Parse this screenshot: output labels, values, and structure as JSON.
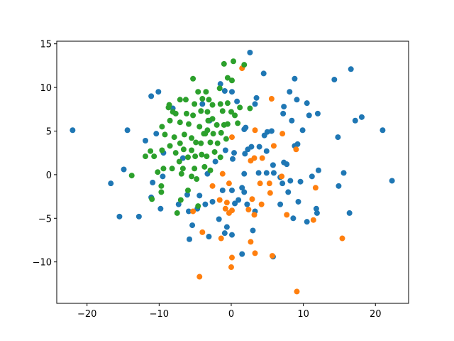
{
  "chart_data": {
    "type": "scatter",
    "xlim": [
      -24.2,
      24.6
    ],
    "ylim": [
      -14.75,
      15.3
    ],
    "xticks": [
      {
        "value": -20,
        "label": "−20"
      },
      {
        "value": -10,
        "label": "−10"
      },
      0,
      10,
      20
    ],
    "yticks": [
      {
        "value": -10,
        "label": "−10"
      },
      {
        "value": -5,
        "label": "−5"
      },
      0,
      5,
      10,
      15
    ],
    "series": [
      {
        "color": "#1f77b4",
        "x": [
          -22.0,
          -14.4,
          -14.9,
          -16.7,
          -15.5,
          -12.8,
          -11.1,
          -10.1,
          -10.4,
          -11.9,
          -11.1,
          -9.8,
          2.6,
          4.5,
          8.8,
          16.6,
          14.3,
          8.1,
          9.1,
          10.5,
          7.3,
          7.2,
          10.8,
          12.0,
          17.2,
          18.1,
          21.0,
          9.9,
          8.4,
          14.8,
          8.8,
          9.2,
          5.0,
          4.6,
          5.6,
          1.8,
          2.3,
          2.8,
          4.9,
          1.9,
          3.9,
          7.7,
          7.3,
          5.8,
          4.9,
          5.9,
          3.8,
          1.8,
          7.1,
          8.2,
          9.6,
          11.2,
          12.1,
          15.6,
          22.3,
          14.9,
          7.9,
          9.3,
          6.8,
          11.8,
          11.9,
          10.5,
          8.6,
          16.4,
          3.3,
          3.0,
          1.5,
          5.8,
          0.1,
          -0.6,
          -0.9,
          -1.7,
          -3.1,
          -5.8,
          -5.4,
          -5.9,
          -4.7,
          -3.6,
          -2.6,
          -4.4,
          -7.3,
          -6.1,
          1.8,
          0.5,
          1.0,
          2.2,
          1.5,
          0.1,
          -1.2,
          -3.3,
          0.2,
          0.4,
          -0.8,
          -2.2,
          0.8,
          3.3,
          3.5,
          2.0,
          -3.0,
          -4.0,
          -0.9,
          -1.5,
          0.1,
          -8.1,
          -9.4,
          -9.5,
          -10.9,
          -6.7,
          6.8
        ],
        "values": [
          5.1,
          5.1,
          0.6,
          -1.0,
          -4.8,
          -4.8,
          9.0,
          9.5,
          4.7,
          3.9,
          -2.6,
          -3.9,
          14.0,
          11.6,
          11.0,
          12.1,
          10.9,
          9.5,
          8.6,
          8.2,
          7.8,
          7.0,
          6.8,
          7.0,
          6.2,
          6.6,
          5.1,
          5.1,
          6.2,
          4.3,
          3.3,
          3.5,
          4.9,
          4.5,
          5.0,
          5.2,
          2.9,
          3.2,
          2.7,
          2.4,
          3.2,
          1.2,
          1.4,
          1.1,
          0.2,
          0.2,
          0.2,
          0.1,
          -1.0,
          -0.7,
          -0.8,
          -0.2,
          0.5,
          0.2,
          -0.7,
          -1.3,
          -2.0,
          -3.1,
          -3.4,
          -3.9,
          -4.4,
          -5.4,
          -5.0,
          -4.4,
          -4.2,
          -6.4,
          -9.1,
          -9.4,
          -6.9,
          -6.0,
          -6.7,
          -5.1,
          -7.1,
          -7.4,
          -5.8,
          -4.2,
          -3.9,
          -3.4,
          -3.1,
          -2.4,
          -3.4,
          -2.3,
          -2.0,
          -3.3,
          -2.9,
          -3.4,
          -1.5,
          -1.8,
          -1.8,
          0.1,
          1.8,
          2.5,
          2.8,
          1.5,
          8.4,
          8.1,
          8.8,
          5.4,
          6.2,
          8.1,
          9.6,
          10.4,
          9.5,
          7.6,
          2.5,
          -0.2,
          -0.9,
          1.9,
          -0.3
        ]
      },
      {
        "color": "#ff7f0e",
        "x": [
          1.5,
          5.6,
          3.3,
          7.1,
          5.9,
          9.0,
          0.1,
          2.7,
          3.2,
          4.3,
          7.0,
          5.3,
          4.0,
          5.4,
          2.9,
          2.4,
          3.2,
          4.2,
          -1.2,
          -2.6,
          -0.3,
          -1.6,
          -0.6,
          0.1,
          -0.3,
          -0.8,
          -1.4,
          -5.3,
          -4.0,
          2.7,
          3.3,
          5.7,
          0.1,
          0.0,
          -4.4,
          9.1,
          7.7,
          11.4,
          11.7,
          15.4
        ],
        "values": [
          12.2,
          8.7,
          5.1,
          4.7,
          3.3,
          2.9,
          4.3,
          1.6,
          1.9,
          1.9,
          -0.2,
          -1.0,
          -1.0,
          -2.1,
          -2.8,
          -4.0,
          -4.6,
          -3.4,
          0.1,
          -1.3,
          -1.0,
          -2.9,
          -3.2,
          -4.1,
          -4.4,
          -3.9,
          -7.3,
          -4.2,
          -6.6,
          -7.7,
          -9.0,
          -9.3,
          -9.5,
          -10.6,
          -11.7,
          -13.4,
          -4.6,
          -5.2,
          -1.5,
          -7.3
        ]
      },
      {
        "color": "#2ca02c",
        "x": [
          0.3,
          -1.0,
          1.8,
          -5.3,
          -0.5,
          0.1,
          -1.6,
          -4.6,
          -3.5,
          -3.1,
          -4.0,
          -6.3,
          -7.1,
          -8.6,
          -7.7,
          -8.1,
          -6.2,
          -5.1,
          -2.6,
          -1.5,
          -0.5,
          1.2,
          2.6,
          -1.2,
          0.0,
          0.5,
          -4.2,
          -3.3,
          -5.3,
          -2.6,
          -2.0,
          -1.0,
          -0.5,
          0.9,
          -7.1,
          -5.9,
          -4.4,
          -3.3,
          -3.8,
          -2.5,
          -9.2,
          -7.9,
          -6.5,
          -5.5,
          -4.9,
          -4.2,
          -2.9,
          -1.9,
          -0.7,
          -7.1,
          -8.5,
          -9.6,
          -11.2,
          -10.7,
          -11.9,
          -7.7,
          -6.6,
          -5.5,
          -5.0,
          -6.0,
          -4.1,
          -3.4,
          -2.3,
          -1.5,
          -7.2,
          -8.2,
          -6.7,
          -5.1,
          -3.7,
          -2.9,
          -10.2,
          -9.4,
          -13.8,
          -6.9,
          -5.5,
          -4.8,
          -9.7,
          -9.7,
          -11.0,
          -7.0,
          -6.0,
          -7.5,
          -4.6,
          -9.6,
          -8.7,
          -3.6,
          -1.4,
          -3.2,
          -8.5
        ],
        "values": [
          13.0,
          12.7,
          12.6,
          11.0,
          11.1,
          10.8,
          9.9,
          9.5,
          9.5,
          8.6,
          8.7,
          8.6,
          8.6,
          8.0,
          7.0,
          7.2,
          7.0,
          8.1,
          8.0,
          8.1,
          8.2,
          7.7,
          7.6,
          7.3,
          7.2,
          6.8,
          7.3,
          7.2,
          6.8,
          6.4,
          5.7,
          5.7,
          5.8,
          5.9,
          6.0,
          5.8,
          5.5,
          5.1,
          4.7,
          4.7,
          4.6,
          4.3,
          4.6,
          4.2,
          3.7,
          3.6,
          3.7,
          3.6,
          4.1,
          3.6,
          3.3,
          2.8,
          2.7,
          2.1,
          2.1,
          2.5,
          2.9,
          2.8,
          2.1,
          2.0,
          2.3,
          2.1,
          2.6,
          2.0,
          1.5,
          0.7,
          0.7,
          0.7,
          0.9,
          0.5,
          0.3,
          0.7,
          -0.1,
          0.1,
          -0.2,
          -0.5,
          -1.3,
          -2.0,
          -2.8,
          -2.9,
          -1.8,
          -4.4,
          -3.6,
          5.5,
          7.7,
          4.7,
          4.8,
          6.2,
          6.2
        ]
      }
    ]
  }
}
